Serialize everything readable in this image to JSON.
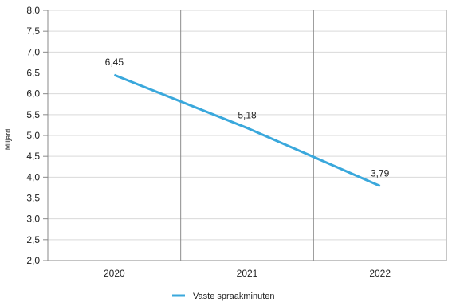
{
  "chart_data": {
    "type": "line",
    "title": "",
    "xlabel": "",
    "ylabel": "Miljard",
    "categories": [
      "2020",
      "2021",
      "2022"
    ],
    "series": [
      {
        "name": "Vaste spraakminuten",
        "values": [
          6.45,
          5.18,
          3.79
        ],
        "data_labels": [
          "6,45",
          "5,18",
          "3,79"
        ],
        "color": "#3aa8dc"
      }
    ],
    "ylim": [
      2.0,
      8.0
    ],
    "yticks": [
      2.0,
      2.5,
      3.0,
      3.5,
      4.0,
      4.5,
      5.0,
      5.5,
      6.0,
      6.5,
      7.0,
      7.5,
      8.0
    ],
    "ytick_labels": [
      "2,0",
      "2,5",
      "3,0",
      "3,5",
      "4,0",
      "4,5",
      "5,0",
      "5,5",
      "6,0",
      "6,5",
      "7,0",
      "7,5",
      "8,0"
    ],
    "grid": true,
    "legend_position": "bottom-center",
    "colors": {
      "grid": "#d9d9d9",
      "axis": "#888888",
      "text": "#222222"
    }
  }
}
